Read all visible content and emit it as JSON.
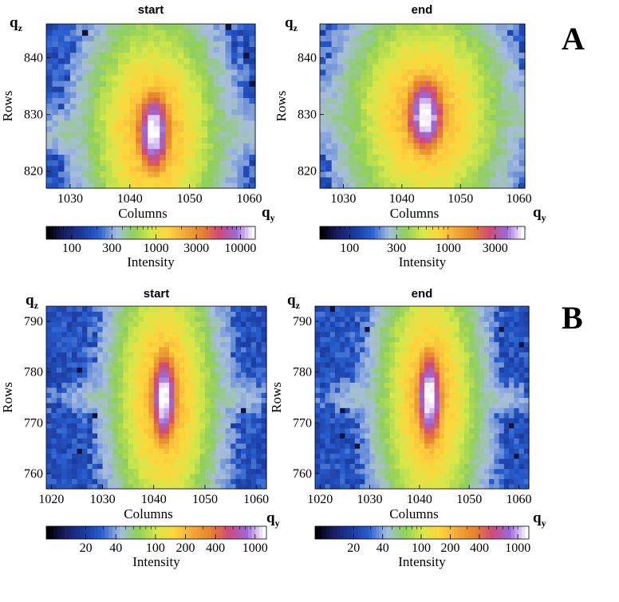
{
  "panel_labels": [
    "A",
    "B"
  ],
  "colormap": [
    "#000000",
    "#1a1f66",
    "#1a3a9e",
    "#2a5fcf",
    "#a7bde0",
    "#8fd05a",
    "#d6e84a",
    "#ffd53d",
    "#f2a93a",
    "#e6842c",
    "#d04a7a",
    "#9b6ad6",
    "#ffffff"
  ],
  "chart_data": [
    {
      "type": "heatmap",
      "title": "start",
      "xlabel": "Columns",
      "ylabel": "Rows",
      "x_axis_symbol": "q",
      "x_axis_symbol_sub": "y",
      "y_axis_symbol": "q",
      "y_axis_symbol_sub": "z",
      "xlim": [
        1026,
        1061
      ],
      "ylim": [
        817,
        846
      ],
      "xticks": [
        1030,
        1040,
        1050,
        1060
      ],
      "yticks": [
        820,
        830,
        840
      ],
      "peak": {
        "x": 1044,
        "y": 827
      },
      "colorbar": {
        "label": "Intensity",
        "scale": "log",
        "range": [
          50,
          15000
        ],
        "ticks": [
          100,
          300,
          1000,
          3000,
          10000
        ],
        "tick_labels": [
          "100",
          "300",
          "1000",
          "3000",
          "10000"
        ]
      }
    },
    {
      "type": "heatmap",
      "title": "end",
      "xlabel": "Columns",
      "ylabel": "Rows",
      "x_axis_symbol": "q",
      "x_axis_symbol_sub": "y",
      "y_axis_symbol": "q",
      "y_axis_symbol_sub": "z",
      "xlim": [
        1026,
        1061
      ],
      "ylim": [
        817,
        846
      ],
      "xticks": [
        1030,
        1040,
        1050,
        1060
      ],
      "yticks": [
        820,
        830,
        840
      ],
      "peak": {
        "x": 1044,
        "y": 830
      },
      "colorbar": {
        "label": "Intensity",
        "scale": "log",
        "range": [
          50,
          6000
        ],
        "ticks": [
          100,
          300,
          1000,
          3000
        ],
        "tick_labels": [
          "100",
          "300",
          "1000",
          "3000"
        ]
      }
    },
    {
      "type": "heatmap",
      "title": "start",
      "xlabel": "Columns",
      "ylabel": "Rows",
      "x_axis_symbol": "q",
      "x_axis_symbol_sub": "y",
      "y_axis_symbol": "q",
      "y_axis_symbol_sub": "z",
      "xlim": [
        1019,
        1062
      ],
      "ylim": [
        757,
        793
      ],
      "xticks": [
        1020,
        1030,
        1040,
        1050,
        1060
      ],
      "yticks": [
        760,
        770,
        780,
        790
      ],
      "peak": {
        "x": 1042,
        "y": 775
      },
      "colorbar": {
        "label": "Intensity",
        "scale": "log",
        "range": [
          8,
          1300
        ],
        "ticks": [
          20,
          40,
          100,
          200,
          400,
          1000
        ],
        "tick_labels": [
          "20",
          "40",
          "100",
          "200",
          "400",
          "1000"
        ]
      }
    },
    {
      "type": "heatmap",
      "title": "end",
      "xlabel": "Columns",
      "ylabel": "Rows",
      "x_axis_symbol": "q",
      "x_axis_symbol_sub": "y",
      "y_axis_symbol": "q",
      "y_axis_symbol_sub": "z",
      "xlim": [
        1019,
        1062
      ],
      "ylim": [
        757,
        793
      ],
      "xticks": [
        1020,
        1030,
        1040,
        1050,
        1060
      ],
      "yticks": [
        760,
        770,
        780,
        790
      ],
      "peak": {
        "x": 1042,
        "y": 775
      },
      "colorbar": {
        "label": "Intensity",
        "scale": "log",
        "range": [
          8,
          1300
        ],
        "ticks": [
          20,
          40,
          100,
          200,
          400,
          1000
        ],
        "tick_labels": [
          "20",
          "40",
          "100",
          "200",
          "400",
          "1000"
        ]
      }
    }
  ]
}
